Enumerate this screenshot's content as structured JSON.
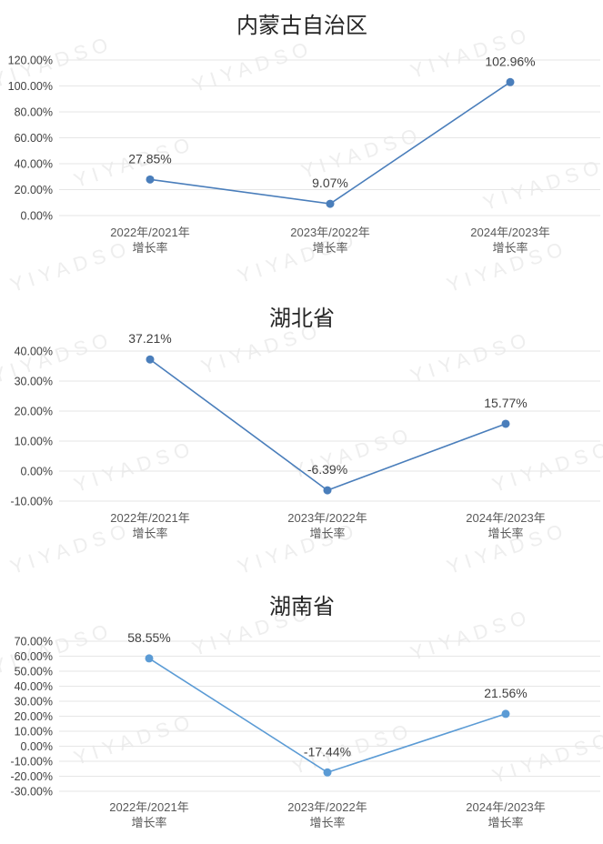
{
  "chart_data": [
    {
      "type": "line",
      "title": "内蒙古自治区",
      "categories": [
        "2022年/2021年增长率",
        "2023年/2022年增长率",
        "2024年/2023年增长率"
      ],
      "category_lines": [
        [
          "2022年/2021年",
          "增长率"
        ],
        [
          "2023年/2022年",
          "增长率"
        ],
        [
          "2024年/2023年",
          "增长率"
        ]
      ],
      "values": [
        27.85,
        9.07,
        102.96
      ],
      "value_labels": [
        "27.85%",
        "9.07%",
        "102.96%"
      ],
      "ylim": [
        0,
        120
      ],
      "yticks": [
        "0.00%",
        "20.00%",
        "40.00%",
        "60.00%",
        "80.00%",
        "100.00%",
        "120.00%"
      ],
      "grid": true,
      "color": "#4a7ebb"
    },
    {
      "type": "line",
      "title": "湖北省",
      "categories": [
        "2022年/2021年增长率",
        "2023年/2022年增长率",
        "2024年/2023年增长率"
      ],
      "category_lines": [
        [
          "2022年/2021年",
          "增长率"
        ],
        [
          "2023年/2022年",
          "增长率"
        ],
        [
          "2024年/2023年",
          "增长率"
        ]
      ],
      "values": [
        37.21,
        -6.39,
        15.77
      ],
      "value_labels": [
        "37.21%",
        "-6.39%",
        "15.77%"
      ],
      "ylim": [
        -10,
        40
      ],
      "yticks": [
        "-10.00%",
        "0.00%",
        "10.00%",
        "20.00%",
        "30.00%",
        "40.00%"
      ],
      "grid": true,
      "color": "#4a7ebb"
    },
    {
      "type": "line",
      "title": "湖南省",
      "categories": [
        "2022年/2021年增长率",
        "2023年/2022年增长率",
        "2024年/2023年增长率"
      ],
      "category_lines": [
        [
          "2022年/2021年",
          "增长率"
        ],
        [
          "2023年/2022年",
          "增长率"
        ],
        [
          "2024年/2023年",
          "增长率"
        ]
      ],
      "values": [
        58.55,
        -17.44,
        21.56
      ],
      "value_labels": [
        "58.55%",
        "-17.44%",
        "21.56%"
      ],
      "ylim": [
        -30,
        70
      ],
      "yticks": [
        "-30.00%",
        "-20.00%",
        "-10.00%",
        "0.00%",
        "10.00%",
        "20.00%",
        "30.00%",
        "40.00%",
        "50.00%",
        "60.00%",
        "70.00%"
      ],
      "grid": true,
      "color": "#5b9bd5"
    }
  ],
  "watermark": "YIYADSO"
}
